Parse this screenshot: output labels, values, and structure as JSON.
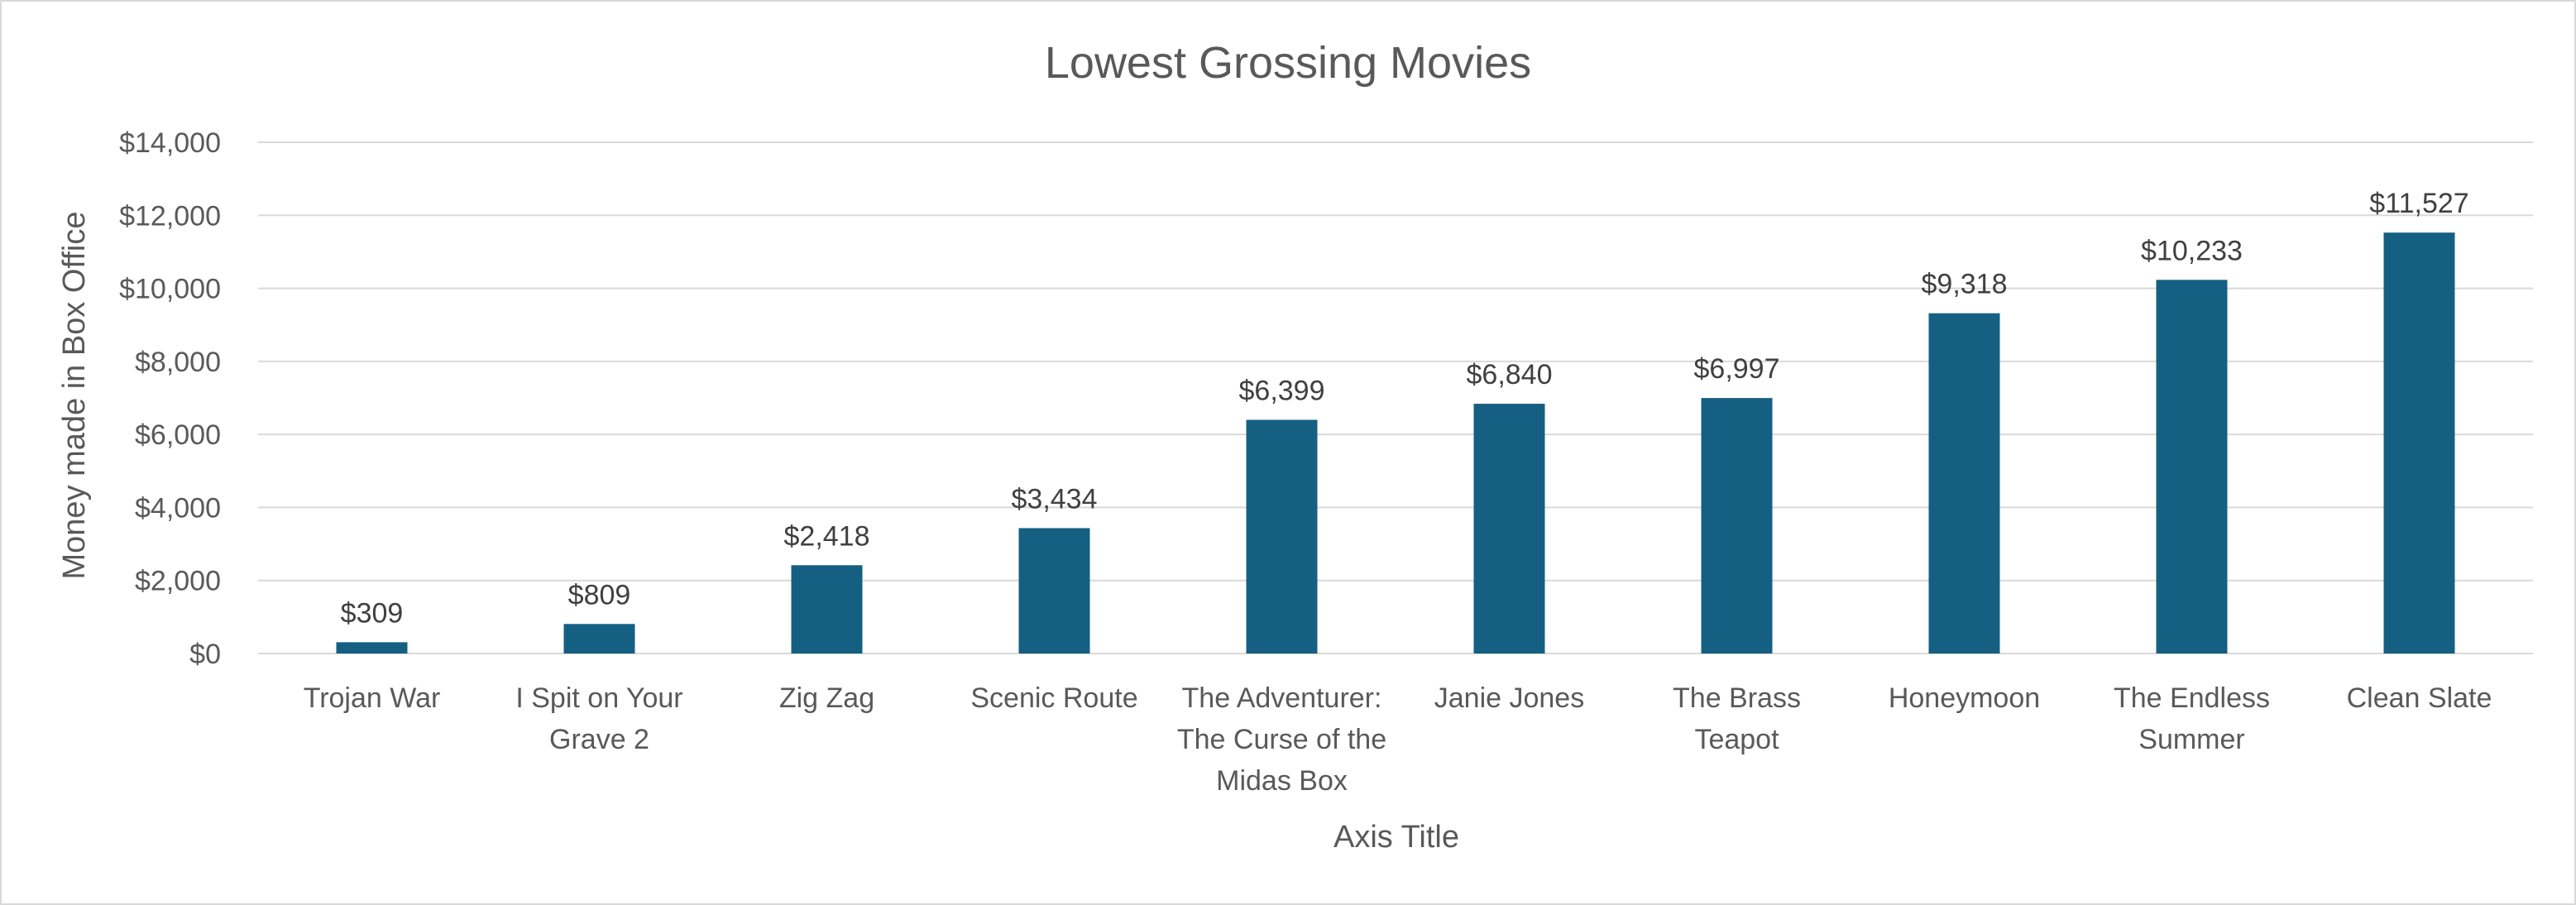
{
  "chart_data": {
    "type": "bar",
    "title": "Lowest Grossing Movies",
    "xlabel": "Axis Title",
    "ylabel": "Money made in Box Office",
    "categories": [
      "Trojan War",
      "I Spit on Your Grave 2",
      "Zig Zag",
      "Scenic Route",
      "The Adventurer: The Curse of the Midas Box",
      "Janie Jones",
      "The Brass Teapot",
      "Honeymoon",
      "The Endless Summer",
      "Clean Slate"
    ],
    "category_lines": [
      [
        "Trojan War"
      ],
      [
        "I Spit on Your",
        "Grave 2"
      ],
      [
        "Zig Zag"
      ],
      [
        "Scenic Route"
      ],
      [
        "The Adventurer:",
        "The Curse of the",
        "Midas Box"
      ],
      [
        "Janie Jones"
      ],
      [
        "The Brass",
        "Teapot"
      ],
      [
        "Honeymoon"
      ],
      [
        "The Endless",
        "Summer"
      ],
      [
        "Clean Slate"
      ]
    ],
    "values": [
      309,
      809,
      2418,
      3434,
      6399,
      6840,
      6997,
      9318,
      10233,
      11527
    ],
    "data_labels": [
      "$309",
      "$809",
      "$2,418",
      "$3,434",
      "$6,399",
      "$6,840",
      "$6,997",
      "$9,318",
      "$10,233",
      "$11,527"
    ],
    "ylim": [
      0,
      14000
    ],
    "yticks": [
      0,
      2000,
      4000,
      6000,
      8000,
      10000,
      12000,
      14000
    ],
    "ytick_labels": [
      "$0",
      "$2,000",
      "$4,000",
      "$6,000",
      "$8,000",
      "$10,000",
      "$12,000",
      "$14,000"
    ],
    "grid": true,
    "legend": "none",
    "colors": {
      "bar": "#156082",
      "grid": "#d9d9d9",
      "text": "#595959",
      "label": "#404040"
    }
  }
}
